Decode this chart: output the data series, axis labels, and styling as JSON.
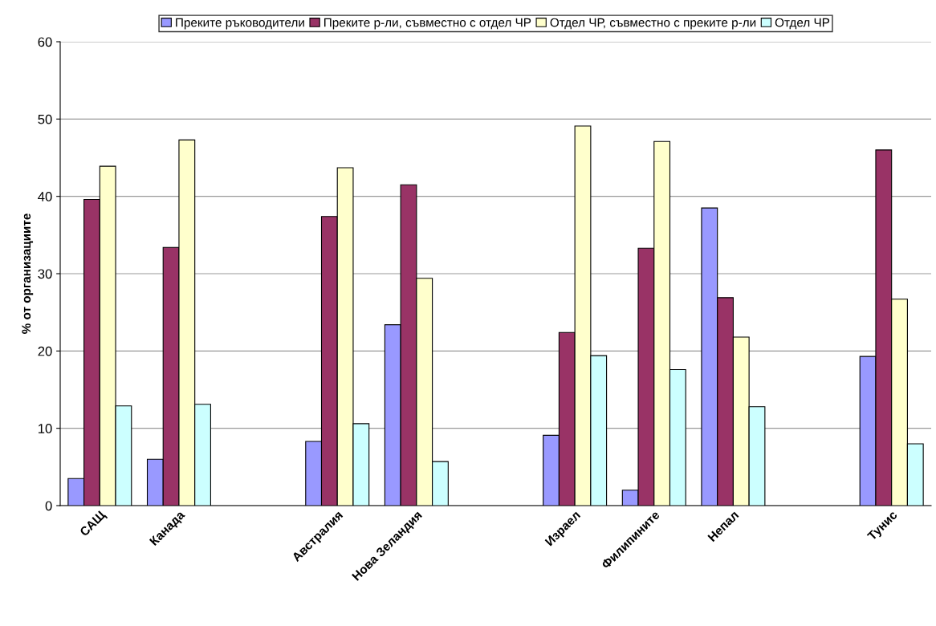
{
  "chart_data": {
    "type": "bar",
    "ylabel": "% от организациите",
    "categories": [
      "САЩ",
      "Канада",
      null,
      "Австралия",
      "Нова Зеландия",
      null,
      "Израел",
      "Филипините",
      "Непал",
      null,
      "Тунис"
    ],
    "series": [
      {
        "name": "Преките ръководители",
        "color": "#9999ff",
        "values": [
          3.5,
          6.0,
          null,
          8.3,
          23.4,
          null,
          9.1,
          2.0,
          38.5,
          null,
          19.3
        ]
      },
      {
        "name": "Преките р-ли, съвместно с отдел ЧР",
        "color": "#993366",
        "values": [
          39.6,
          33.4,
          null,
          37.4,
          41.5,
          null,
          22.4,
          33.3,
          26.9,
          null,
          46.0
        ]
      },
      {
        "name": "Отдел ЧР, съвместно с преките р-ли",
        "color": "#ffffcc",
        "values": [
          43.9,
          47.3,
          null,
          43.7,
          29.4,
          null,
          49.1,
          47.1,
          21.8,
          null,
          26.7
        ]
      },
      {
        "name": "Отдел ЧР",
        "color": "#ccffff",
        "values": [
          12.9,
          13.1,
          null,
          10.6,
          5.7,
          null,
          19.4,
          17.6,
          12.8,
          null,
          8.0
        ]
      }
    ],
    "ylim": [
      0,
      60
    ],
    "yticks": [
      0,
      10,
      20,
      30,
      40,
      50,
      60
    ],
    "grid": "y",
    "legend": "top"
  }
}
